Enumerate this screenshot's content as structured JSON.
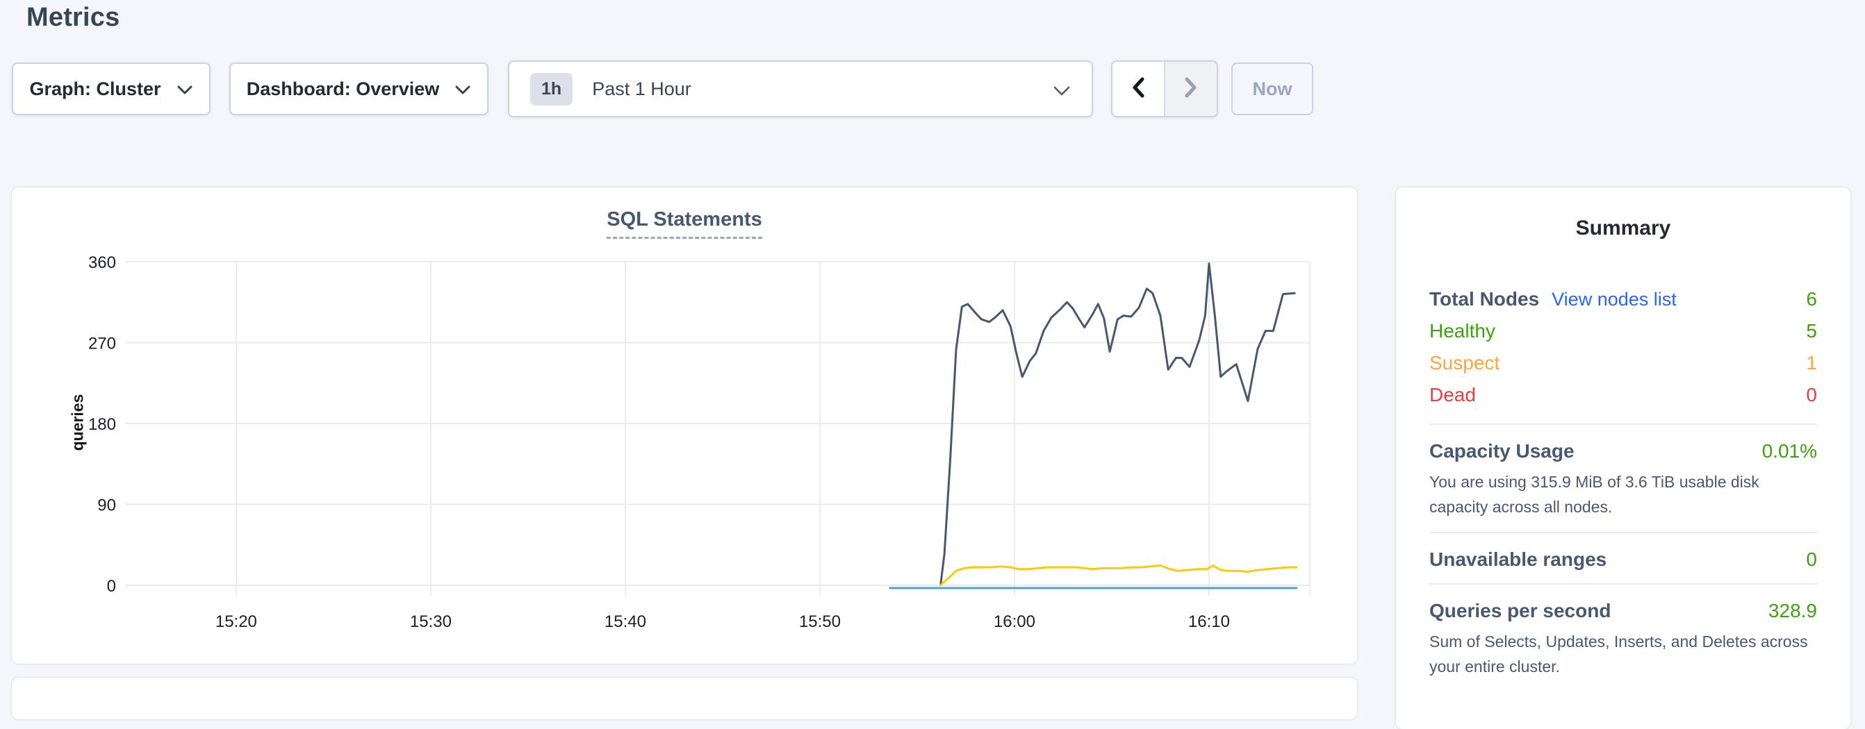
{
  "page": {
    "title": "Metrics"
  },
  "toolbar": {
    "graph_dropdown": {
      "label": "Graph: Cluster"
    },
    "dashboard_dropdown": {
      "label": "Dashboard: Overview"
    },
    "time_selector": {
      "badge": "1h",
      "label": "Past 1 Hour"
    },
    "now_button": {
      "label": "Now"
    }
  },
  "chart_data": {
    "type": "line",
    "title": "SQL Statements",
    "ylabel": "queries",
    "legend": "none",
    "grid": true,
    "ylim": [
      0,
      360
    ],
    "y_ticks": [
      0,
      90,
      180,
      270,
      360
    ],
    "x_unit": "minutes after 15:00",
    "x_domain_minutes": [
      14.29,
      75.18
    ],
    "x_ticks": {
      "labels": [
        "15:20",
        "15:30",
        "15:40",
        "15:50",
        "16:00",
        "16:10"
      ],
      "t": [
        20,
        30,
        40,
        50,
        60,
        70
      ]
    },
    "series": [
      {
        "name": "navy",
        "color": "#475872",
        "points": [
          [
            56.2,
            0
          ],
          [
            56.4,
            35
          ],
          [
            56.7,
            140
          ],
          [
            57.0,
            262
          ],
          [
            57.3,
            310
          ],
          [
            57.6,
            313
          ],
          [
            58.0,
            303
          ],
          [
            58.3,
            296
          ],
          [
            58.7,
            293
          ],
          [
            59.0,
            298
          ],
          [
            59.4,
            306
          ],
          [
            59.8,
            288
          ],
          [
            60.1,
            258
          ],
          [
            60.4,
            232
          ],
          [
            60.8,
            250
          ],
          [
            61.1,
            258
          ],
          [
            61.5,
            283
          ],
          [
            61.9,
            298
          ],
          [
            62.3,
            306
          ],
          [
            62.7,
            315
          ],
          [
            63.0,
            308
          ],
          [
            63.3,
            297
          ],
          [
            63.6,
            287
          ],
          [
            64.0,
            301
          ],
          [
            64.3,
            313
          ],
          [
            64.6,
            297
          ],
          [
            64.9,
            260
          ],
          [
            65.3,
            296
          ],
          [
            65.6,
            300
          ],
          [
            66.0,
            299
          ],
          [
            66.4,
            309
          ],
          [
            66.8,
            330
          ],
          [
            67.1,
            325
          ],
          [
            67.5,
            300
          ],
          [
            67.9,
            240
          ],
          [
            68.3,
            253
          ],
          [
            68.6,
            253
          ],
          [
            69.0,
            243
          ],
          [
            69.5,
            273
          ],
          [
            69.8,
            300
          ],
          [
            70.0,
            358
          ],
          [
            70.3,
            300
          ],
          [
            70.6,
            232
          ],
          [
            70.9,
            238
          ],
          [
            71.4,
            246
          ],
          [
            72.0,
            205
          ],
          [
            72.5,
            263
          ],
          [
            72.9,
            283
          ],
          [
            73.3,
            283
          ],
          [
            73.8,
            324
          ],
          [
            74.4,
            325
          ]
        ]
      },
      {
        "name": "yellow",
        "color": "#ffc80a",
        "points": [
          [
            56.2,
            0
          ],
          [
            56.6,
            8
          ],
          [
            57.0,
            16
          ],
          [
            57.4,
            19
          ],
          [
            57.8,
            20
          ],
          [
            58.3,
            20
          ],
          [
            58.8,
            20
          ],
          [
            59.3,
            21
          ],
          [
            59.8,
            20
          ],
          [
            60.2,
            18
          ],
          [
            60.7,
            18
          ],
          [
            61.2,
            19
          ],
          [
            61.7,
            20
          ],
          [
            62.2,
            20
          ],
          [
            62.7,
            20
          ],
          [
            63.2,
            20
          ],
          [
            63.6,
            19
          ],
          [
            64.0,
            18
          ],
          [
            64.5,
            19
          ],
          [
            65.0,
            19
          ],
          [
            65.5,
            19
          ],
          [
            66.0,
            20
          ],
          [
            66.5,
            20
          ],
          [
            67.0,
            21
          ],
          [
            67.5,
            22
          ],
          [
            68.0,
            18
          ],
          [
            68.4,
            16
          ],
          [
            68.9,
            17
          ],
          [
            69.4,
            18
          ],
          [
            69.9,
            18
          ],
          [
            70.2,
            22
          ],
          [
            70.6,
            17
          ],
          [
            71.0,
            16
          ],
          [
            71.5,
            16
          ],
          [
            72.0,
            15
          ],
          [
            72.5,
            17
          ],
          [
            73.0,
            18
          ],
          [
            73.5,
            19
          ],
          [
            74.0,
            20
          ],
          [
            74.5,
            20
          ]
        ]
      },
      {
        "name": "blue",
        "color": "#4c9fd2",
        "points": [
          [
            53.6,
            0
          ],
          [
            74.5,
            0
          ]
        ]
      }
    ]
  },
  "summary": {
    "title": "Summary",
    "total_nodes": {
      "label": "Total Nodes",
      "link": "View nodes list",
      "value": "6"
    },
    "node_statuses": [
      {
        "label": "Healthy",
        "value": "5",
        "color": "#3da30c"
      },
      {
        "label": "Suspect",
        "value": "1",
        "color": "#ffa53b"
      },
      {
        "label": "Dead",
        "value": "0",
        "color": "#ef3a42"
      }
    ],
    "capacity": {
      "label": "Capacity Usage",
      "value": "0.01%",
      "description": "You are using 315.9 MiB of 3.6 TiB usable disk capacity across all nodes."
    },
    "unavailable_ranges": {
      "label": "Unavailable ranges",
      "value": "0"
    },
    "qps": {
      "label": "Queries per second",
      "value": "328.9",
      "description": "Sum of Selects, Updates, Inserts, and Deletes across your entire cluster."
    }
  },
  "colors": {
    "positive_green": "#3da30c",
    "warning_orange": "#ffa53b",
    "danger_red": "#ef3a42",
    "link_blue": "#2962ff",
    "heading_slate": "#475872"
  }
}
